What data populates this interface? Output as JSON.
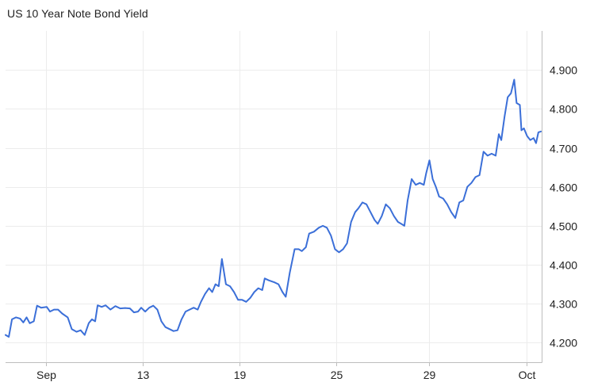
{
  "chart_data": {
    "type": "line",
    "title": "US 10 Year Note Bond Yield",
    "xlabel": "",
    "ylabel": "",
    "grid": true,
    "ylim": [
      4.15,
      5.0
    ],
    "y_ticks": [
      "4.200",
      "4.300",
      "4.400",
      "4.500",
      "4.600",
      "4.700",
      "4.800",
      "4.900"
    ],
    "x_ticks": [
      {
        "label": "Sep",
        "x": 10
      },
      {
        "label": "13",
        "x": 34
      },
      {
        "label": "19",
        "x": 58
      },
      {
        "label": "25",
        "x": 82
      },
      {
        "label": "29",
        "x": 105
      },
      {
        "label": "Oct",
        "x": 129
      }
    ],
    "xlim": [
      0,
      132.8
    ],
    "series": [
      {
        "color": "#3b6fd8",
        "points": [
          [
            0,
            4.22
          ],
          [
            0.8,
            4.215
          ],
          [
            1.6,
            4.26
          ],
          [
            2.6,
            4.265
          ],
          [
            3.6,
            4.262
          ],
          [
            4.4,
            4.252
          ],
          [
            5.2,
            4.265
          ],
          [
            6.0,
            4.25
          ],
          [
            7.0,
            4.255
          ],
          [
            7.8,
            4.295
          ],
          [
            8.8,
            4.29
          ],
          [
            10.2,
            4.292
          ],
          [
            11.0,
            4.28
          ],
          [
            12.0,
            4.285
          ],
          [
            13.0,
            4.285
          ],
          [
            14.0,
            4.275
          ],
          [
            15.4,
            4.265
          ],
          [
            16.4,
            4.235
          ],
          [
            17.6,
            4.228
          ],
          [
            18.6,
            4.232
          ],
          [
            19.6,
            4.22
          ],
          [
            20.6,
            4.25
          ],
          [
            21.4,
            4.26
          ],
          [
            22.2,
            4.255
          ],
          [
            22.8,
            4.296
          ],
          [
            23.8,
            4.292
          ],
          [
            24.8,
            4.296
          ],
          [
            26.0,
            4.285
          ],
          [
            27.2,
            4.294
          ],
          [
            28.4,
            4.288
          ],
          [
            29.6,
            4.289
          ],
          [
            30.8,
            4.288
          ],
          [
            31.8,
            4.278
          ],
          [
            32.8,
            4.28
          ],
          [
            33.6,
            4.29
          ],
          [
            34.6,
            4.28
          ],
          [
            35.6,
            4.29
          ],
          [
            36.6,
            4.295
          ],
          [
            37.6,
            4.285
          ],
          [
            38.6,
            4.255
          ],
          [
            39.6,
            4.24
          ],
          [
            40.6,
            4.235
          ],
          [
            41.6,
            4.23
          ],
          [
            42.6,
            4.232
          ],
          [
            43.6,
            4.26
          ],
          [
            44.6,
            4.28
          ],
          [
            45.6,
            4.285
          ],
          [
            46.6,
            4.29
          ],
          [
            47.6,
            4.285
          ],
          [
            48.4,
            4.305
          ],
          [
            49.4,
            4.325
          ],
          [
            50.4,
            4.34
          ],
          [
            51.2,
            4.33
          ],
          [
            52.0,
            4.35
          ],
          [
            52.8,
            4.345
          ],
          [
            53.6,
            4.415
          ],
          [
            54.6,
            4.35
          ],
          [
            55.6,
            4.345
          ],
          [
            56.6,
            4.33
          ],
          [
            57.6,
            4.31
          ],
          [
            58.6,
            4.31
          ],
          [
            59.6,
            4.305
          ],
          [
            60.6,
            4.315
          ],
          [
            61.6,
            4.33
          ],
          [
            62.6,
            4.34
          ],
          [
            63.6,
            4.335
          ],
          [
            64.2,
            4.365
          ],
          [
            65.2,
            4.36
          ],
          [
            66.6,
            4.355
          ],
          [
            67.6,
            4.35
          ],
          [
            68.6,
            4.33
          ],
          [
            69.4,
            4.318
          ],
          [
            70.4,
            4.38
          ],
          [
            71.6,
            4.44
          ],
          [
            72.6,
            4.44
          ],
          [
            73.4,
            4.435
          ],
          [
            74.4,
            4.445
          ],
          [
            75.2,
            4.48
          ],
          [
            76.4,
            4.485
          ],
          [
            77.6,
            4.495
          ],
          [
            78.6,
            4.5
          ],
          [
            79.6,
            4.495
          ],
          [
            80.6,
            4.475
          ],
          [
            81.6,
            4.44
          ],
          [
            82.6,
            4.432
          ],
          [
            83.6,
            4.44
          ],
          [
            84.6,
            4.455
          ],
          [
            85.6,
            4.51
          ],
          [
            86.6,
            4.535
          ],
          [
            87.4,
            4.545
          ],
          [
            88.4,
            4.56
          ],
          [
            89.4,
            4.555
          ],
          [
            90.4,
            4.535
          ],
          [
            91.4,
            4.515
          ],
          [
            92.2,
            4.505
          ],
          [
            93.2,
            4.525
          ],
          [
            94.2,
            4.555
          ],
          [
            95.2,
            4.545
          ],
          [
            96.2,
            4.525
          ],
          [
            97.2,
            4.51
          ],
          [
            98.0,
            4.505
          ],
          [
            98.8,
            4.5
          ],
          [
            99.6,
            4.565
          ],
          [
            100.6,
            4.62
          ],
          [
            101.6,
            4.605
          ],
          [
            102.6,
            4.61
          ],
          [
            103.6,
            4.605
          ],
          [
            104.2,
            4.635
          ],
          [
            105.0,
            4.668
          ],
          [
            105.8,
            4.62
          ],
          [
            106.6,
            4.6
          ],
          [
            107.4,
            4.575
          ],
          [
            108.4,
            4.57
          ],
          [
            109.4,
            4.555
          ],
          [
            110.4,
            4.535
          ],
          [
            111.4,
            4.52
          ],
          [
            112.4,
            4.56
          ],
          [
            113.4,
            4.565
          ],
          [
            114.4,
            4.6
          ],
          [
            115.4,
            4.61
          ],
          [
            116.4,
            4.625
          ],
          [
            117.4,
            4.63
          ],
          [
            118.4,
            4.69
          ],
          [
            119.4,
            4.68
          ],
          [
            120.4,
            4.685
          ],
          [
            121.4,
            4.68
          ],
          [
            122.2,
            4.735
          ],
          [
            122.8,
            4.72
          ],
          [
            123.6,
            4.78
          ],
          [
            124.4,
            4.83
          ],
          [
            125.2,
            4.84
          ],
          [
            126.0,
            4.875
          ],
          [
            126.6,
            4.815
          ],
          [
            127.4,
            4.81
          ],
          [
            127.8,
            4.745
          ],
          [
            128.4,
            4.75
          ],
          [
            129.2,
            4.73
          ],
          [
            130.0,
            4.72
          ],
          [
            130.8,
            4.725
          ],
          [
            131.4,
            4.712
          ],
          [
            132.0,
            4.74
          ],
          [
            132.6,
            4.742
          ]
        ]
      }
    ]
  }
}
